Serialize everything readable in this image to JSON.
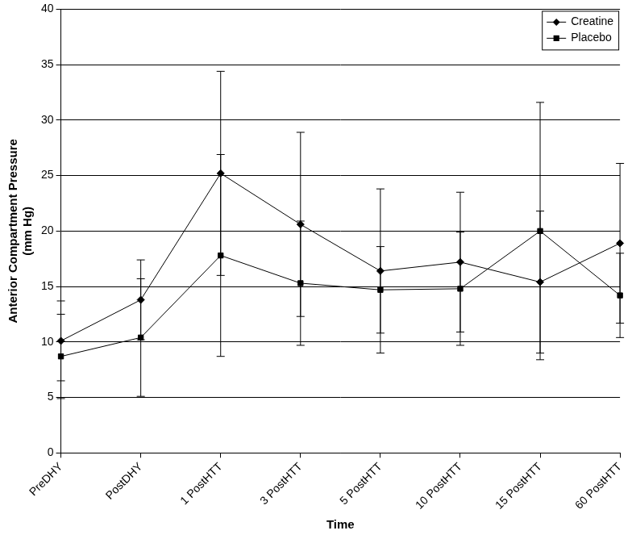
{
  "chart_data": {
    "type": "line",
    "x_label": "Time",
    "y_label": [
      "Anterior Compartment Pressure",
      "(mm Hg)"
    ],
    "categories": [
      "PreDHY",
      "PostDHY",
      "1 PostHTT",
      "3 PostHTT",
      "5 PostHTT",
      "10 PostHTT",
      "15 PostHTT",
      "60 PostHTT"
    ],
    "series": [
      {
        "name": "Creatine",
        "color": "#000000",
        "marker": "diamond",
        "values": [
          10.1,
          13.8,
          25.2,
          20.6,
          16.4,
          17.2,
          15.4,
          18.9
        ],
        "error": [
          3.6,
          3.6,
          9.2,
          8.3,
          7.4,
          6.3,
          6.4,
          7.2
        ]
      },
      {
        "name": "Placebo",
        "color": "#000000",
        "marker": "square",
        "values": [
          8.7,
          10.4,
          17.8,
          15.3,
          14.7,
          14.8,
          20.0,
          14.2
        ],
        "error": [
          3.8,
          5.3,
          9.1,
          5.6,
          3.9,
          5.1,
          11.6,
          3.8
        ]
      }
    ],
    "ylim": [
      0,
      40
    ],
    "yticks": [
      0,
      5,
      10,
      15,
      20,
      25,
      30,
      35,
      40
    ],
    "grid": true,
    "legend": "upper right"
  }
}
